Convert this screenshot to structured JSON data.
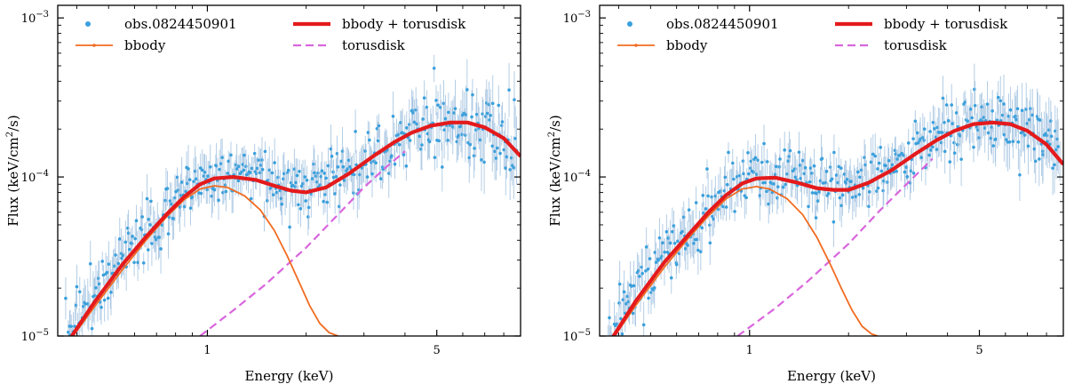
{
  "chart_data": [
    {
      "type": "scatter",
      "panel": "left",
      "xlabel": "Energy (keV)",
      "ylabel_main": "Flux (keV/cm",
      "ylabel_sup": "2",
      "ylabel_end": "/s)",
      "xscale": "log",
      "yscale": "log",
      "xlim": [
        0.35,
        9.0
      ],
      "ylim": [
        1e-05,
        0.0012
      ],
      "x_tick_labels": [
        {
          "value": 1,
          "label": "1"
        },
        {
          "value": 5,
          "label": "5"
        }
      ],
      "y_tick_labels": [
        {
          "value": 1e-05,
          "base": "10",
          "exp": "−5"
        },
        {
          "value": 0.0001,
          "base": "10",
          "exp": "−4"
        },
        {
          "value": 0.001,
          "base": "10",
          "exp": "−3"
        }
      ],
      "legend": {
        "placement": "top",
        "entries": [
          {
            "key": "obs",
            "label": "obs.0824450901"
          },
          {
            "key": "total",
            "label": "bbody + torusdisk"
          },
          {
            "key": "bbody",
            "label": "bbody"
          },
          {
            "key": "torusdisk",
            "label": "torusdisk"
          }
        ]
      },
      "series": [
        {
          "key": "total",
          "name": "bbody + torusdisk",
          "color": "#e41a1c",
          "x": [
            0.38,
            0.45,
            0.55,
            0.65,
            0.75,
            0.85,
            0.95,
            1.05,
            1.2,
            1.4,
            1.6,
            1.8,
            2.0,
            2.3,
            2.7,
            3.2,
            3.7,
            4.2,
            4.8,
            5.5,
            6.2,
            7.0,
            8.0,
            9.0
          ],
          "y": [
            9.5e-06,
            1.6e-05,
            2.8e-05,
            4.2e-05,
            5.8e-05,
            7.5e-05,
            9e-05,
            9.8e-05,
            0.0001,
            9.6e-05,
            8.8e-05,
            8.2e-05,
            8e-05,
            8.6e-05,
            0.000105,
            0.000135,
            0.000165,
            0.00019,
            0.00021,
            0.00022,
            0.00022,
            0.000205,
            0.000175,
            0.000135
          ]
        },
        {
          "key": "bbody",
          "name": "bbody",
          "color": "#f26b21",
          "x": [
            0.38,
            0.45,
            0.55,
            0.65,
            0.75,
            0.85,
            0.95,
            1.05,
            1.15,
            1.3,
            1.45,
            1.6,
            1.75,
            1.9,
            2.05,
            2.2,
            2.35,
            2.5
          ],
          "y": [
            9.3e-06,
            1.5e-05,
            2.6e-05,
            4e-05,
            5.6e-05,
            7.2e-05,
            8.4e-05,
            8.8e-05,
            8.6e-05,
            7.6e-05,
            6.2e-05,
            4.6e-05,
            3.2e-05,
            2.2e-05,
            1.55e-05,
            1.2e-05,
            1.05e-05,
            1e-05
          ]
        },
        {
          "key": "torusdisk",
          "name": "torusdisk",
          "color": "#d966dd",
          "x": [
            0.95,
            1.2,
            1.5,
            2.0,
            2.5,
            3.0,
            3.5,
            4.0
          ],
          "y": [
            1e-05,
            1.45e-05,
            2.1e-05,
            3.6e-05,
            5.8e-05,
            8.6e-05,
            0.000115,
            0.000145
          ]
        },
        {
          "key": "obs",
          "name": "obs.0824450901",
          "color": "#3aa0dc",
          "seed": 7,
          "x_range": [
            0.37,
            8.8
          ],
          "count": 420,
          "scatter_sigma": 0.09
        }
      ]
    },
    {
      "type": "scatter",
      "panel": "right",
      "xlabel": "Energy (keV)",
      "ylabel_main": "Flux (keV/cm",
      "ylabel_sup": "2",
      "ylabel_end": "/s)",
      "xscale": "log",
      "yscale": "log",
      "xlim": [
        0.35,
        9.0
      ],
      "ylim": [
        1e-05,
        0.0012
      ],
      "x_tick_labels": [
        {
          "value": 1,
          "label": "1"
        },
        {
          "value": 5,
          "label": "5"
        }
      ],
      "y_tick_labels": [
        {
          "value": 1e-05,
          "base": "10",
          "exp": "−5"
        },
        {
          "value": 0.0001,
          "base": "10",
          "exp": "−4"
        },
        {
          "value": 0.001,
          "base": "10",
          "exp": "−3"
        }
      ],
      "legend": {
        "placement": "top",
        "entries": [
          {
            "key": "obs",
            "label": "obs.0824450901"
          },
          {
            "key": "total",
            "label": "bbody + torusdisk"
          },
          {
            "key": "bbody",
            "label": "bbody"
          },
          {
            "key": "torusdisk",
            "label": "torusdisk"
          }
        ]
      },
      "series": [
        {
          "key": "total",
          "name": "bbody + torusdisk",
          "color": "#e41a1c",
          "x": [
            0.38,
            0.45,
            0.55,
            0.65,
            0.75,
            0.85,
            0.95,
            1.05,
            1.2,
            1.4,
            1.6,
            1.8,
            2.0,
            2.3,
            2.7,
            3.2,
            3.7,
            4.2,
            4.8,
            5.5,
            6.2,
            7.0,
            8.0,
            9.0
          ],
          "y": [
            9.5e-06,
            1.65e-05,
            2.9e-05,
            4.3e-05,
            6e-05,
            7.7e-05,
            9.1e-05,
            9.8e-05,
            9.9e-05,
            9.2e-05,
            8.5e-05,
            8.3e-05,
            8.3e-05,
            9.2e-05,
            0.00011,
            0.00014,
            0.00017,
            0.000195,
            0.000215,
            0.00022,
            0.000215,
            0.000195,
            0.00016,
            0.00012
          ]
        },
        {
          "key": "bbody",
          "name": "bbody",
          "color": "#f26b21",
          "x": [
            0.38,
            0.45,
            0.55,
            0.65,
            0.75,
            0.85,
            0.95,
            1.05,
            1.15,
            1.3,
            1.45,
            1.6,
            1.75,
            1.9,
            2.05,
            2.2,
            2.35,
            2.45
          ],
          "y": [
            9.3e-06,
            1.55e-05,
            2.7e-05,
            4.1e-05,
            5.7e-05,
            7.3e-05,
            8.4e-05,
            8.7e-05,
            8.4e-05,
            7.3e-05,
            5.8e-05,
            4.2e-05,
            2.9e-05,
            2e-05,
            1.45e-05,
            1.15e-05,
            1.03e-05,
            1e-05
          ]
        },
        {
          "key": "torusdisk",
          "name": "torusdisk",
          "color": "#d966dd",
          "x": [
            0.92,
            1.2,
            1.5,
            2.0,
            2.5,
            3.0,
            3.6
          ],
          "y": [
            1e-05,
            1.5e-05,
            2.2e-05,
            3.8e-05,
            6.2e-05,
            9e-05,
            0.00013
          ]
        },
        {
          "key": "obs",
          "name": "obs.0824450901",
          "color": "#3aa0dc",
          "seed": 11,
          "x_range": [
            0.37,
            8.8
          ],
          "count": 420,
          "scatter_sigma": 0.09
        }
      ]
    }
  ]
}
